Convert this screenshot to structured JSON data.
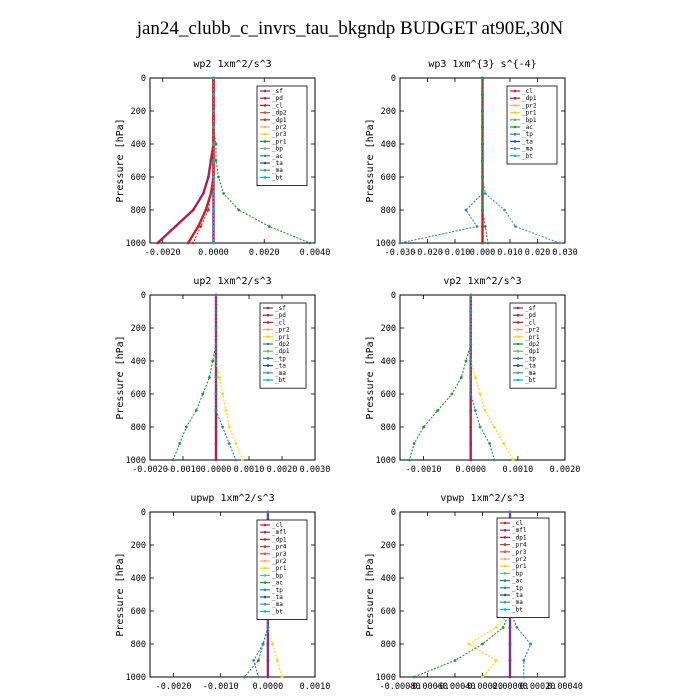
{
  "page": {
    "title": "jan24_clubb_c_invrs_tau_bkgndp  BUDGET at90E,30N"
  },
  "chart_data": [
    {
      "type": "line",
      "title": "wp2  1xm^2/s^3",
      "ylabel": "Pressure [hPa]",
      "xlim": [
        -0.0025,
        0.004
      ],
      "ylim": [
        1000,
        0
      ],
      "xticks": [
        -0.002,
        0.0,
        0.002,
        0.004
      ],
      "xtick_labels": [
        "-0.0020",
        "0.0000",
        "0.0020",
        "0.0040"
      ],
      "yticks": [
        0,
        200,
        400,
        600,
        800,
        1000
      ],
      "legend": [
        "_sf",
        "_pd",
        "_cl",
        "_dp2",
        "_dp1",
        "_pr2",
        "_pr3",
        "_pr1",
        "_bp",
        "_ac",
        "_ta",
        "_ma",
        "_bt"
      ],
      "series_colors": [
        "#7b2f8f",
        "#b0204a",
        "#d7191c",
        "#e34a33",
        "#c0392b",
        "#fdae61",
        "#ffd700",
        "#1a9641",
        "#66bd63",
        "#2b83ba",
        "#1f4e9c",
        "#4393c3",
        "#00bfbf"
      ],
      "series": [
        {
          "name": "_sf",
          "x": [
            0,
            0,
            0,
            0,
            0,
            0,
            0,
            0,
            0,
            0,
            0
          ],
          "y": [
            0,
            100,
            200,
            300,
            400,
            500,
            600,
            700,
            800,
            900,
            1000
          ]
        },
        {
          "name": "_pd",
          "x": [
            0,
            0,
            0,
            0,
            0,
            -0.0001,
            -0.0002,
            -0.0004,
            -0.0008,
            -0.0015,
            -0.0022
          ],
          "y": [
            0,
            100,
            200,
            300,
            400,
            500,
            600,
            700,
            800,
            900,
            1000
          ]
        },
        {
          "name": "_cl",
          "x": [
            0,
            0,
            0,
            0,
            0,
            0,
            0,
            -0.0001,
            -0.0003,
            -0.0006,
            -0.001
          ],
          "y": [
            0,
            100,
            200,
            300,
            400,
            500,
            600,
            700,
            800,
            900,
            1000
          ]
        },
        {
          "name": "_dp1",
          "x": [
            0,
            0,
            0,
            0,
            0,
            0,
            0,
            -0.0001,
            -0.0002,
            -0.0005,
            -0.0008
          ],
          "y": [
            0,
            100,
            200,
            300,
            400,
            500,
            600,
            700,
            800,
            900,
            1000
          ]
        },
        {
          "name": "_pr1",
          "x": [
            0,
            0,
            0,
            0,
            0.0001,
            0.0001,
            0.0002,
            0.0004,
            0.001,
            0.0022,
            0.0038
          ],
          "y": [
            0,
            100,
            200,
            300,
            400,
            500,
            600,
            700,
            800,
            900,
            1000
          ]
        },
        {
          "name": "_bt",
          "x": [
            0,
            0,
            0,
            0,
            0,
            0,
            0,
            0,
            0,
            0,
            0
          ],
          "y": [
            0,
            100,
            200,
            300,
            400,
            500,
            600,
            700,
            800,
            900,
            1000
          ]
        }
      ]
    },
    {
      "type": "line",
      "title": "wp3  1xm^{3} s^{-4}",
      "ylabel": "Pressure [hPa]",
      "xlim": [
        -0.03,
        0.03
      ],
      "ylim": [
        1000,
        0
      ],
      "xticks": [
        -0.03,
        -0.02,
        -0.01,
        0.0,
        0.01,
        0.02,
        0.03
      ],
      "xtick_labels": [
        "-0.030",
        "-0.020",
        "-0.010",
        "0.000",
        "0.010",
        "0.020",
        "0.030"
      ],
      "yticks": [
        0,
        200,
        400,
        600,
        800,
        1000
      ],
      "legend": [
        "_cl",
        "_dp1",
        "_pr2",
        "_pr1",
        "_bp1",
        "_ac",
        "_tp",
        "_ta",
        "_ma",
        "_bt"
      ],
      "series_colors": [
        "#d7191c",
        "#b0204a",
        "#fdae61",
        "#ffd700",
        "#66bd63",
        "#1a9641",
        "#2b83ba",
        "#1f4e9c",
        "#4393c3",
        "#00bfbf"
      ],
      "series": [
        {
          "name": "_cl",
          "x": [
            0,
            0,
            0,
            0,
            0,
            0,
            0,
            0,
            0,
            0,
            0
          ],
          "y": [
            0,
            100,
            200,
            300,
            400,
            500,
            600,
            700,
            800,
            900,
            1000
          ]
        },
        {
          "name": "_tp",
          "x": [
            0,
            0,
            0,
            0,
            0,
            0,
            0,
            0,
            -0.006,
            -0.002,
            -0.03
          ],
          "y": [
            0,
            100,
            200,
            300,
            400,
            500,
            600,
            700,
            800,
            900,
            1000
          ]
        },
        {
          "name": "_ma",
          "x": [
            0,
            0,
            0,
            0,
            0,
            0,
            0,
            0.001,
            0.008,
            0.012,
            0.028
          ],
          "y": [
            0,
            100,
            200,
            300,
            400,
            500,
            600,
            700,
            800,
            900,
            1000
          ]
        },
        {
          "name": "_ac",
          "x": [
            0,
            0,
            0,
            0,
            0,
            0,
            0,
            0,
            0,
            0.001,
            0.002
          ],
          "y": [
            0,
            100,
            200,
            300,
            400,
            500,
            600,
            700,
            800,
            900,
            1000
          ]
        }
      ]
    },
    {
      "type": "line",
      "title": "up2  1xm^2/s^3",
      "ylabel": "Pressure [hPa]",
      "xlim": [
        -0.002,
        0.003
      ],
      "ylim": [
        1000,
        0
      ],
      "xticks": [
        -0.002,
        -0.001,
        0.0,
        0.001,
        0.002,
        0.003
      ],
      "xtick_labels": [
        "-0.0020",
        "-0.0010",
        "0.0000",
        "0.0010",
        "0.0020",
        "0.0030"
      ],
      "yticks": [
        0,
        200,
        400,
        600,
        800,
        1000
      ],
      "legend": [
        "_sf",
        "_pd",
        "_cl",
        "_pr2",
        "_pr1",
        "_dp2",
        "_dp1",
        "_tp",
        "_ta",
        "_ma",
        "_bt"
      ],
      "series_colors": [
        "#7b2f8f",
        "#b0204a",
        "#d7191c",
        "#fdae61",
        "#ffd700",
        "#1a9641",
        "#66bd63",
        "#2b83ba",
        "#1f4e9c",
        "#4393c3",
        "#00bfbf"
      ],
      "series": [
        {
          "name": "_pd",
          "x": [
            0,
            0,
            0,
            0,
            0,
            0,
            0,
            0,
            0,
            0,
            0
          ],
          "y": [
            0,
            100,
            200,
            300,
            400,
            500,
            600,
            700,
            800,
            900,
            1000
          ]
        },
        {
          "name": "_dp2",
          "x": [
            0,
            0,
            0,
            0,
            -0.0001,
            -0.0002,
            -0.0004,
            -0.0006,
            -0.0009,
            -0.0011,
            -0.0013
          ],
          "y": [
            0,
            100,
            200,
            300,
            400,
            500,
            600,
            700,
            800,
            900,
            1000
          ]
        },
        {
          "name": "_pr1",
          "x": [
            0,
            0,
            0,
            0,
            0,
            0.0001,
            0.0002,
            0.0003,
            0.0004,
            0.0006,
            0.0008
          ],
          "y": [
            0,
            100,
            200,
            300,
            400,
            500,
            600,
            700,
            800,
            900,
            1000
          ]
        },
        {
          "name": "_tp",
          "x": [
            0,
            0,
            0,
            0,
            0,
            0,
            0,
            0,
            0.0002,
            0.0004,
            0.0006
          ],
          "y": [
            0,
            100,
            200,
            300,
            400,
            500,
            600,
            700,
            800,
            900,
            1000
          ]
        }
      ]
    },
    {
      "type": "line",
      "title": "vp2  1xm^2/s^3",
      "ylabel": "Pressure [hPa]",
      "xlim": [
        -0.0015,
        0.002
      ],
      "ylim": [
        1000,
        0
      ],
      "xticks": [
        -0.001,
        0.0,
        0.001,
        0.002
      ],
      "xtick_labels": [
        "-0.0010",
        "0.0000",
        "0.0010",
        "0.0020"
      ],
      "yticks": [
        0,
        200,
        400,
        600,
        800,
        1000
      ],
      "legend": [
        "_sf",
        "_pd",
        "_cl",
        "_pr2",
        "_pr1",
        "_dp2",
        "_dp1",
        "_tp",
        "_ta",
        "_ma",
        "_bt"
      ],
      "series_colors": [
        "#7b2f8f",
        "#b0204a",
        "#d7191c",
        "#fdae61",
        "#ffd700",
        "#1a9641",
        "#66bd63",
        "#2b83ba",
        "#1f4e9c",
        "#4393c3",
        "#00bfbf"
      ],
      "series": [
        {
          "name": "_pd",
          "x": [
            0,
            0,
            0,
            0,
            0,
            0,
            0,
            0,
            0,
            0,
            0
          ],
          "y": [
            0,
            100,
            200,
            300,
            400,
            500,
            600,
            700,
            800,
            900,
            1000
          ]
        },
        {
          "name": "_dp2",
          "x": [
            0,
            0,
            0,
            0,
            -0.0001,
            -0.0002,
            -0.0004,
            -0.0007,
            -0.001,
            -0.0012,
            -0.0013
          ],
          "y": [
            0,
            100,
            200,
            300,
            400,
            500,
            600,
            700,
            800,
            900,
            1000
          ]
        },
        {
          "name": "_pr1",
          "x": [
            0,
            0,
            0,
            0,
            0,
            0.0001,
            0.0002,
            0.0003,
            0.0005,
            0.0007,
            0.0009
          ],
          "y": [
            0,
            100,
            200,
            300,
            400,
            500,
            600,
            700,
            800,
            900,
            1000
          ]
        },
        {
          "name": "_tp",
          "x": [
            0,
            0,
            0,
            0,
            0,
            0,
            0,
            0.0001,
            0.0002,
            0.0004,
            0.0005
          ],
          "y": [
            0,
            100,
            200,
            300,
            400,
            500,
            600,
            700,
            800,
            900,
            1000
          ]
        }
      ]
    },
    {
      "type": "line",
      "title": "upwp  1xm^2/s^3",
      "ylabel": "Pressure [hPa]",
      "xlim": [
        -0.0025,
        0.001
      ],
      "ylim": [
        1000,
        0
      ],
      "xticks": [
        -0.002,
        -0.001,
        0.0,
        0.001
      ],
      "xtick_labels": [
        "-0.0020",
        "-0.0010",
        "0.0000",
        "0.0010"
      ],
      "yticks": [
        0,
        200,
        400,
        600,
        800,
        1000
      ],
      "legend": [
        "_cl",
        "_mfl",
        "_dp1",
        "_pr4",
        "_pr3",
        "_pr2",
        "_pr1",
        "_bp",
        "_ac",
        "_tp",
        "_ta",
        "_ma",
        "_bt"
      ],
      "series_colors": [
        "#d7191c",
        "#7b2f8f",
        "#b0204a",
        "#c0392b",
        "#e34a33",
        "#fdae61",
        "#ffd700",
        "#66bd63",
        "#1a9641",
        "#2b83ba",
        "#1f4e9c",
        "#4393c3",
        "#00bfbf"
      ],
      "series": [
        {
          "name": "_mfl",
          "x": [
            0,
            0,
            0,
            0,
            0,
            0,
            0,
            0,
            0,
            0,
            0
          ],
          "y": [
            0,
            100,
            200,
            300,
            400,
            500,
            600,
            700,
            800,
            900,
            1000
          ]
        },
        {
          "name": "_pr1",
          "x": [
            0,
            0,
            0,
            0,
            0,
            0,
            0,
            0,
            0.0001,
            0.0002,
            0.0003
          ],
          "y": [
            0,
            100,
            200,
            300,
            400,
            500,
            600,
            700,
            800,
            900,
            1000
          ]
        },
        {
          "name": "_ac",
          "x": [
            0,
            0,
            0,
            0,
            0,
            0,
            0,
            0,
            -0.0001,
            -0.0002,
            -0.0005
          ],
          "y": [
            0,
            100,
            200,
            300,
            400,
            500,
            600,
            700,
            800,
            900,
            1000
          ]
        },
        {
          "name": "_tp",
          "x": [
            0,
            0,
            0,
            0,
            0,
            0,
            0,
            0,
            -0.0001,
            -0.0003,
            -0.0002
          ],
          "y": [
            0,
            100,
            200,
            300,
            400,
            500,
            600,
            700,
            800,
            900,
            1000
          ]
        }
      ]
    },
    {
      "type": "line",
      "title": "vpwp  1xm^2/s^3",
      "ylabel": "Pressure [hPa]",
      "xlim": [
        -0.0008,
        0.0004
      ],
      "ylim": [
        1000,
        0
      ],
      "xticks": [
        -0.0008,
        -0.0006,
        -0.0004,
        -0.0002,
        0.0,
        0.0002,
        0.0004
      ],
      "xtick_labels": [
        "-0.00080",
        "-0.00060",
        "-0.00040",
        "-0.00020",
        "0.00000",
        "0.00020",
        "0.00040"
      ],
      "yticks": [
        0,
        200,
        400,
        600,
        800,
        1000
      ],
      "legend": [
        "_cl",
        "_mfl",
        "_dp1",
        "_pr4",
        "_pr3",
        "_pr2",
        "_pr1",
        "_bp",
        "_ac",
        "_tp",
        "_ta",
        "_ma",
        "_bt"
      ],
      "series_colors": [
        "#d7191c",
        "#7b2f8f",
        "#b0204a",
        "#c0392b",
        "#e34a33",
        "#fdae61",
        "#ffd700",
        "#66bd63",
        "#1a9641",
        "#2b83ba",
        "#1f4e9c",
        "#4393c3",
        "#00bfbf"
      ],
      "series": [
        {
          "name": "_mfl",
          "x": [
            0,
            0,
            0,
            0,
            0,
            0,
            0,
            0,
            0,
            0,
            0
          ],
          "y": [
            0,
            100,
            200,
            300,
            400,
            500,
            600,
            700,
            800,
            900,
            1000
          ]
        },
        {
          "name": "_pr1",
          "x": [
            0,
            0,
            0,
            0,
            0,
            0,
            0,
            -0.0001,
            -0.0003,
            -0.0001,
            -0.0002
          ],
          "y": [
            0,
            100,
            200,
            300,
            400,
            500,
            600,
            700,
            800,
            900,
            1000
          ]
        },
        {
          "name": "_ac",
          "x": [
            0,
            0,
            0,
            0,
            0,
            0,
            0,
            -5e-05,
            -0.0002,
            -0.0004,
            -0.0007
          ],
          "y": [
            0,
            100,
            200,
            300,
            400,
            500,
            600,
            700,
            800,
            900,
            1000
          ]
        },
        {
          "name": "_tp",
          "x": [
            0,
            0,
            0,
            0,
            0,
            0,
            0,
            5e-05,
            0.00015,
            0.0001,
            0.0001
          ],
          "y": [
            0,
            100,
            200,
            300,
            400,
            500,
            600,
            700,
            800,
            900,
            1000
          ]
        }
      ]
    }
  ]
}
